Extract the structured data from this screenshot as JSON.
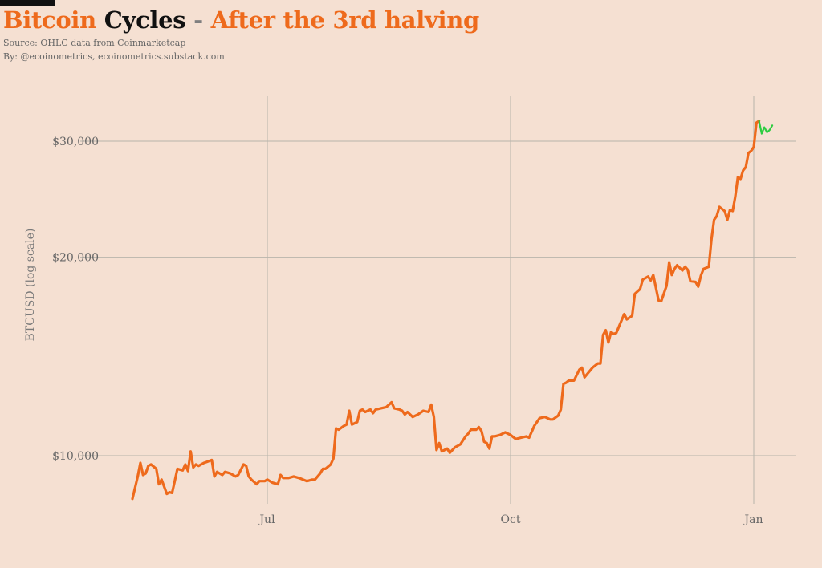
{
  "header": {
    "title_part1": "Bitcoin",
    "title_part2": "Cycles",
    "title_separator": "-",
    "title_part3": "After the 3rd halving",
    "source": "Source: OHLC data from Coinmarketcap",
    "byline": "By: @ecoinometrics, ecoinometrics.substack.com"
  },
  "chart_data": {
    "type": "line",
    "title": "Bitcoin Cycles - After the 3rd halving",
    "ylabel": "BTCUSD (log scale)",
    "xlabel": "",
    "y_scale": "log",
    "ylim": [
      8800,
      32500
    ],
    "xlim": [
      "2020-05-11",
      "2021-01-09"
    ],
    "grid": true,
    "legend": "none",
    "x_ticks": [
      {
        "date": "2020-07-01",
        "label": "Jul"
      },
      {
        "date": "2020-10-01",
        "label": "Oct"
      },
      {
        "date": "2021-01-01",
        "label": "Jan"
      }
    ],
    "y_ticks": [
      {
        "value": 10000,
        "label": "$10,000"
      },
      {
        "value": 20000,
        "label": "$20,000"
      },
      {
        "value": 30000,
        "label": "$30,000"
      }
    ],
    "colors": {
      "orange": "#ee6a1c",
      "green": "#2ecc40",
      "grid": "#b8b4ab",
      "tick_text": "#666666"
    },
    "series": [
      {
        "color": "#ee6a1c",
        "points": [
          [
            "2020-05-11",
            8600
          ],
          [
            "2020-05-13",
            9300
          ],
          [
            "2020-05-14",
            9750
          ],
          [
            "2020-05-15",
            9350
          ],
          [
            "2020-05-16",
            9400
          ],
          [
            "2020-05-17",
            9650
          ],
          [
            "2020-05-18",
            9700
          ],
          [
            "2020-05-20",
            9550
          ],
          [
            "2020-05-21",
            9050
          ],
          [
            "2020-05-22",
            9200
          ],
          [
            "2020-05-24",
            8750
          ],
          [
            "2020-05-25",
            8800
          ],
          [
            "2020-05-26",
            8780
          ],
          [
            "2020-05-27",
            9150
          ],
          [
            "2020-05-28",
            9550
          ],
          [
            "2020-05-30",
            9500
          ],
          [
            "2020-05-31",
            9700
          ],
          [
            "2020-06-01",
            9480
          ],
          [
            "2020-06-02",
            10150
          ],
          [
            "2020-06-03",
            9600
          ],
          [
            "2020-06-04",
            9700
          ],
          [
            "2020-06-05",
            9650
          ],
          [
            "2020-06-07",
            9750
          ],
          [
            "2020-06-08",
            9780
          ],
          [
            "2020-06-10",
            9850
          ],
          [
            "2020-06-11",
            9300
          ],
          [
            "2020-06-12",
            9450
          ],
          [
            "2020-06-14",
            9350
          ],
          [
            "2020-06-15",
            9450
          ],
          [
            "2020-06-17",
            9400
          ],
          [
            "2020-06-19",
            9300
          ],
          [
            "2020-06-20",
            9350
          ],
          [
            "2020-06-22",
            9700
          ],
          [
            "2020-06-23",
            9650
          ],
          [
            "2020-06-24",
            9300
          ],
          [
            "2020-06-25",
            9200
          ],
          [
            "2020-06-27",
            9050
          ],
          [
            "2020-06-28",
            9150
          ],
          [
            "2020-06-30",
            9150
          ],
          [
            "2020-07-01",
            9200
          ],
          [
            "2020-07-03",
            9100
          ],
          [
            "2020-07-05",
            9050
          ],
          [
            "2020-07-06",
            9350
          ],
          [
            "2020-07-07",
            9250
          ],
          [
            "2020-07-09",
            9250
          ],
          [
            "2020-07-11",
            9300
          ],
          [
            "2020-07-13",
            9250
          ],
          [
            "2020-07-16",
            9150
          ],
          [
            "2020-07-18",
            9200
          ],
          [
            "2020-07-19",
            9200
          ],
          [
            "2020-07-21",
            9400
          ],
          [
            "2020-07-22",
            9550
          ],
          [
            "2020-07-23",
            9550
          ],
          [
            "2020-07-25",
            9700
          ],
          [
            "2020-07-26",
            9900
          ],
          [
            "2020-07-27",
            11000
          ],
          [
            "2020-07-28",
            10950
          ],
          [
            "2020-07-30",
            11100
          ],
          [
            "2020-07-31",
            11150
          ],
          [
            "2020-08-01",
            11700
          ],
          [
            "2020-08-02",
            11150
          ],
          [
            "2020-08-04",
            11250
          ],
          [
            "2020-08-05",
            11700
          ],
          [
            "2020-08-06",
            11750
          ],
          [
            "2020-08-07",
            11650
          ],
          [
            "2020-08-09",
            11750
          ],
          [
            "2020-08-10",
            11600
          ],
          [
            "2020-08-11",
            11750
          ],
          [
            "2020-08-13",
            11800
          ],
          [
            "2020-08-15",
            11850
          ],
          [
            "2020-08-17",
            12050
          ],
          [
            "2020-08-18",
            11800
          ],
          [
            "2020-08-20",
            11750
          ],
          [
            "2020-08-21",
            11700
          ],
          [
            "2020-08-22",
            11550
          ],
          [
            "2020-08-23",
            11650
          ],
          [
            "2020-08-25",
            11450
          ],
          [
            "2020-08-27",
            11550
          ],
          [
            "2020-08-29",
            11700
          ],
          [
            "2020-08-31",
            11650
          ],
          [
            "2020-09-01",
            11950
          ],
          [
            "2020-09-02",
            11450
          ],
          [
            "2020-09-03",
            10200
          ],
          [
            "2020-09-04",
            10450
          ],
          [
            "2020-09-05",
            10150
          ],
          [
            "2020-09-07",
            10250
          ],
          [
            "2020-09-08",
            10100
          ],
          [
            "2020-09-10",
            10300
          ],
          [
            "2020-09-12",
            10400
          ],
          [
            "2020-09-14",
            10700
          ],
          [
            "2020-09-15",
            10800
          ],
          [
            "2020-09-16",
            10950
          ],
          [
            "2020-09-18",
            10950
          ],
          [
            "2020-09-19",
            11050
          ],
          [
            "2020-09-20",
            10900
          ],
          [
            "2020-09-21",
            10500
          ],
          [
            "2020-09-22",
            10450
          ],
          [
            "2020-09-23",
            10250
          ],
          [
            "2020-09-24",
            10700
          ],
          [
            "2020-09-25",
            10700
          ],
          [
            "2020-09-27",
            10750
          ],
          [
            "2020-09-29",
            10850
          ],
          [
            "2020-10-01",
            10750
          ],
          [
            "2020-10-03",
            10600
          ],
          [
            "2020-10-05",
            10650
          ],
          [
            "2020-10-07",
            10700
          ],
          [
            "2020-10-08",
            10650
          ],
          [
            "2020-10-10",
            11100
          ],
          [
            "2020-10-12",
            11400
          ],
          [
            "2020-10-14",
            11450
          ],
          [
            "2020-10-16",
            11350
          ],
          [
            "2020-10-17",
            11350
          ],
          [
            "2020-10-19",
            11500
          ],
          [
            "2020-10-20",
            11750
          ],
          [
            "2020-10-21",
            12850
          ],
          [
            "2020-10-22",
            12900
          ],
          [
            "2020-10-23",
            13000
          ],
          [
            "2020-10-25",
            13000
          ],
          [
            "2020-10-27",
            13500
          ],
          [
            "2020-10-28",
            13600
          ],
          [
            "2020-10-29",
            13150
          ],
          [
            "2020-10-30",
            13300
          ],
          [
            "2020-11-01",
            13600
          ],
          [
            "2020-11-03",
            13800
          ],
          [
            "2020-11-04",
            13800
          ],
          [
            "2020-11-05",
            15250
          ],
          [
            "2020-11-06",
            15500
          ],
          [
            "2020-11-07",
            14850
          ],
          [
            "2020-11-08",
            15400
          ],
          [
            "2020-11-09",
            15300
          ],
          [
            "2020-11-10",
            15350
          ],
          [
            "2020-11-11",
            15700
          ],
          [
            "2020-11-13",
            16400
          ],
          [
            "2020-11-14",
            16100
          ],
          [
            "2020-11-16",
            16300
          ],
          [
            "2020-11-17",
            17600
          ],
          [
            "2020-11-19",
            17900
          ],
          [
            "2020-11-20",
            18500
          ],
          [
            "2020-11-22",
            18700
          ],
          [
            "2020-11-23",
            18450
          ],
          [
            "2020-11-24",
            18800
          ],
          [
            "2020-11-26",
            17200
          ],
          [
            "2020-11-27",
            17150
          ],
          [
            "2020-11-29",
            18100
          ],
          [
            "2020-11-30",
            19650
          ],
          [
            "2020-12-01",
            18800
          ],
          [
            "2020-12-02",
            19200
          ],
          [
            "2020-12-03",
            19450
          ],
          [
            "2020-12-05",
            19100
          ],
          [
            "2020-12-06",
            19350
          ],
          [
            "2020-12-07",
            19150
          ],
          [
            "2020-12-08",
            18400
          ],
          [
            "2020-12-10",
            18350
          ],
          [
            "2020-12-11",
            18050
          ],
          [
            "2020-12-12",
            18750
          ],
          [
            "2020-12-13",
            19200
          ],
          [
            "2020-12-15",
            19350
          ],
          [
            "2020-12-16",
            21300
          ],
          [
            "2020-12-17",
            22800
          ],
          [
            "2020-12-18",
            23100
          ],
          [
            "2020-12-19",
            23850
          ],
          [
            "2020-12-21",
            23500
          ],
          [
            "2020-12-22",
            22800
          ],
          [
            "2020-12-23",
            23600
          ],
          [
            "2020-12-24",
            23500
          ],
          [
            "2020-12-25",
            24700
          ],
          [
            "2020-12-26",
            26450
          ],
          [
            "2020-12-27",
            26300
          ],
          [
            "2020-12-28",
            27100
          ],
          [
            "2020-12-29",
            27400
          ],
          [
            "2020-12-30",
            28800
          ],
          [
            "2020-12-31",
            29000
          ],
          [
            "2021-01-01",
            29400
          ],
          [
            "2021-01-02",
            32000
          ],
          [
            "2021-01-03",
            32200
          ]
        ]
      },
      {
        "color": "#2ecc40",
        "points": [
          [
            "2021-01-03",
            32200
          ],
          [
            "2021-01-04",
            30800
          ],
          [
            "2021-01-05",
            31500
          ],
          [
            "2021-01-06",
            30950
          ],
          [
            "2021-01-07",
            31200
          ],
          [
            "2021-01-08",
            31700
          ]
        ]
      }
    ]
  }
}
